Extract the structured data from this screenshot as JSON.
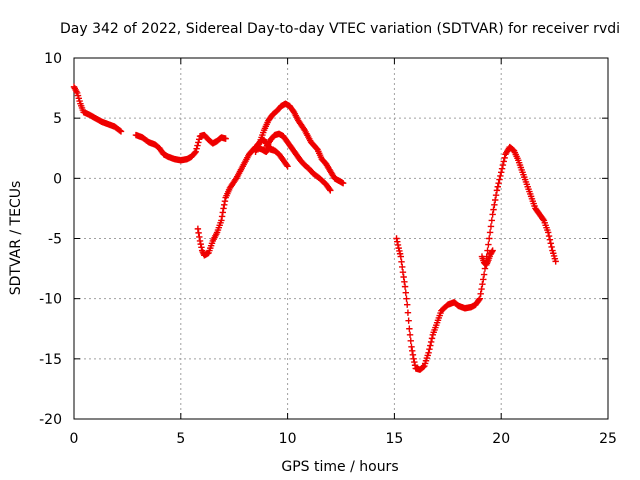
{
  "chart_data": {
    "type": "scatter",
    "title": "Day 342 of 2022, Sidereal Day-to-day VTEC variation (SDTVAR) for receiver rvdi",
    "xlabel": "GPS time / hours",
    "ylabel": "SDTVAR / TECUs",
    "xlim": [
      0,
      25
    ],
    "ylim": [
      -20,
      10
    ],
    "xticks": [
      0,
      5,
      10,
      15,
      20,
      25
    ],
    "yticks": [
      -20,
      -15,
      -10,
      -5,
      0,
      5,
      10
    ],
    "xtick_labels": [
      "0",
      "5",
      "10",
      "15",
      "20",
      "25"
    ],
    "ytick_labels": [
      "-20",
      "-15",
      "-10",
      "-5",
      "0",
      "5",
      "10"
    ],
    "grid": true,
    "marker": "plus",
    "color": "#ee0000",
    "series": [
      {
        "name": "track-1",
        "points": [
          [
            0.0,
            7.6
          ],
          [
            0.15,
            7.1
          ],
          [
            0.3,
            6.2
          ],
          [
            0.45,
            5.5
          ],
          [
            0.7,
            5.3
          ],
          [
            1.0,
            5.0
          ],
          [
            1.3,
            4.7
          ],
          [
            1.6,
            4.5
          ],
          [
            1.9,
            4.3
          ],
          [
            2.2,
            3.9
          ]
        ]
      },
      {
        "name": "track-2",
        "points": [
          [
            2.9,
            3.6
          ],
          [
            3.2,
            3.4
          ],
          [
            3.5,
            3.0
          ],
          [
            3.8,
            2.8
          ],
          [
            4.0,
            2.5
          ],
          [
            4.2,
            2.0
          ],
          [
            4.4,
            1.8
          ],
          [
            4.7,
            1.6
          ],
          [
            5.0,
            1.5
          ],
          [
            5.3,
            1.6
          ],
          [
            5.5,
            1.8
          ],
          [
            5.7,
            2.2
          ],
          [
            5.9,
            3.5
          ],
          [
            6.1,
            3.6
          ],
          [
            6.3,
            3.2
          ],
          [
            6.5,
            2.9
          ],
          [
            6.7,
            3.1
          ],
          [
            6.9,
            3.4
          ],
          [
            7.1,
            3.3
          ]
        ]
      },
      {
        "name": "track-3",
        "points": [
          [
            5.8,
            -4.2
          ],
          [
            5.9,
            -5.2
          ],
          [
            6.0,
            -6.0
          ],
          [
            6.1,
            -6.4
          ],
          [
            6.3,
            -6.2
          ],
          [
            6.5,
            -5.2
          ],
          [
            6.7,
            -4.5
          ],
          [
            6.9,
            -3.5
          ],
          [
            7.0,
            -2.5
          ],
          [
            7.1,
            -1.6
          ],
          [
            7.3,
            -0.8
          ],
          [
            7.6,
            0.0
          ],
          [
            7.9,
            1.0
          ],
          [
            8.2,
            2.0
          ],
          [
            8.5,
            2.6
          ],
          [
            8.8,
            2.4
          ],
          [
            9.0,
            2.2
          ],
          [
            9.2,
            2.6
          ]
        ]
      },
      {
        "name": "track-4",
        "points": [
          [
            8.5,
            2.2
          ],
          [
            8.7,
            3.0
          ],
          [
            8.9,
            4.0
          ],
          [
            9.1,
            4.8
          ],
          [
            9.3,
            5.3
          ],
          [
            9.5,
            5.6
          ],
          [
            9.7,
            6.0
          ],
          [
            9.9,
            6.2
          ],
          [
            10.1,
            6.0
          ],
          [
            10.3,
            5.5
          ],
          [
            10.5,
            4.8
          ],
          [
            10.8,
            4.0
          ],
          [
            11.1,
            3.0
          ],
          [
            11.4,
            2.4
          ],
          [
            11.6,
            1.6
          ],
          [
            11.8,
            1.2
          ],
          [
            12.0,
            0.6
          ],
          [
            12.2,
            0.0
          ],
          [
            12.4,
            -0.2
          ],
          [
            12.6,
            -0.4
          ]
        ]
      },
      {
        "name": "track-5",
        "points": [
          [
            9.0,
            2.6
          ],
          [
            9.2,
            3.2
          ],
          [
            9.4,
            3.6
          ],
          [
            9.6,
            3.7
          ],
          [
            9.8,
            3.5
          ],
          [
            10.0,
            3.0
          ],
          [
            10.2,
            2.5
          ],
          [
            10.4,
            2.0
          ],
          [
            10.6,
            1.5
          ],
          [
            10.8,
            1.1
          ],
          [
            11.0,
            0.8
          ],
          [
            11.2,
            0.4
          ],
          [
            11.5,
            0.0
          ],
          [
            11.8,
            -0.5
          ],
          [
            12.0,
            -1.0
          ]
        ]
      },
      {
        "name": "track-6",
        "points": [
          [
            8.6,
            2.8
          ],
          [
            8.8,
            3.2
          ],
          [
            9.0,
            3.0
          ],
          [
            9.2,
            2.4
          ],
          [
            9.4,
            2.3
          ],
          [
            9.6,
            2.0
          ],
          [
            9.8,
            1.5
          ],
          [
            10.0,
            1.0
          ]
        ]
      },
      {
        "name": "track-7",
        "points": [
          [
            15.1,
            -5.0
          ],
          [
            15.2,
            -5.8
          ],
          [
            15.3,
            -6.5
          ],
          [
            15.4,
            -7.8
          ],
          [
            15.5,
            -9.0
          ],
          [
            15.6,
            -10.5
          ],
          [
            15.7,
            -12.5
          ],
          [
            15.8,
            -14.0
          ],
          [
            15.9,
            -15.0
          ],
          [
            16.0,
            -15.8
          ],
          [
            16.2,
            -15.9
          ],
          [
            16.4,
            -15.6
          ],
          [
            16.6,
            -14.5
          ],
          [
            16.8,
            -13.0
          ],
          [
            17.0,
            -12.0
          ],
          [
            17.2,
            -11.0
          ],
          [
            17.5,
            -10.5
          ],
          [
            17.8,
            -10.3
          ],
          [
            18.0,
            -10.6
          ],
          [
            18.3,
            -10.8
          ],
          [
            18.6,
            -10.7
          ],
          [
            18.8,
            -10.5
          ],
          [
            19.0,
            -10.0
          ],
          [
            19.2,
            -8.0
          ],
          [
            19.4,
            -5.5
          ],
          [
            19.6,
            -3.0
          ],
          [
            19.8,
            -1.0
          ],
          [
            20.0,
            0.5
          ],
          [
            20.2,
            2.0
          ],
          [
            20.4,
            2.6
          ],
          [
            20.6,
            2.3
          ],
          [
            20.8,
            1.5
          ],
          [
            21.0,
            0.5
          ],
          [
            21.2,
            -0.5
          ],
          [
            21.4,
            -1.5
          ],
          [
            21.6,
            -2.5
          ],
          [
            21.8,
            -3.0
          ],
          [
            22.0,
            -3.5
          ],
          [
            22.2,
            -4.5
          ],
          [
            22.4,
            -6.0
          ],
          [
            22.55,
            -6.9
          ]
        ]
      },
      {
        "name": "track-8",
        "points": [
          [
            19.1,
            -6.5
          ],
          [
            19.2,
            -7.0
          ],
          [
            19.3,
            -7.2
          ],
          [
            19.4,
            -6.8
          ],
          [
            19.5,
            -6.3
          ],
          [
            19.6,
            -6.0
          ]
        ]
      }
    ]
  }
}
